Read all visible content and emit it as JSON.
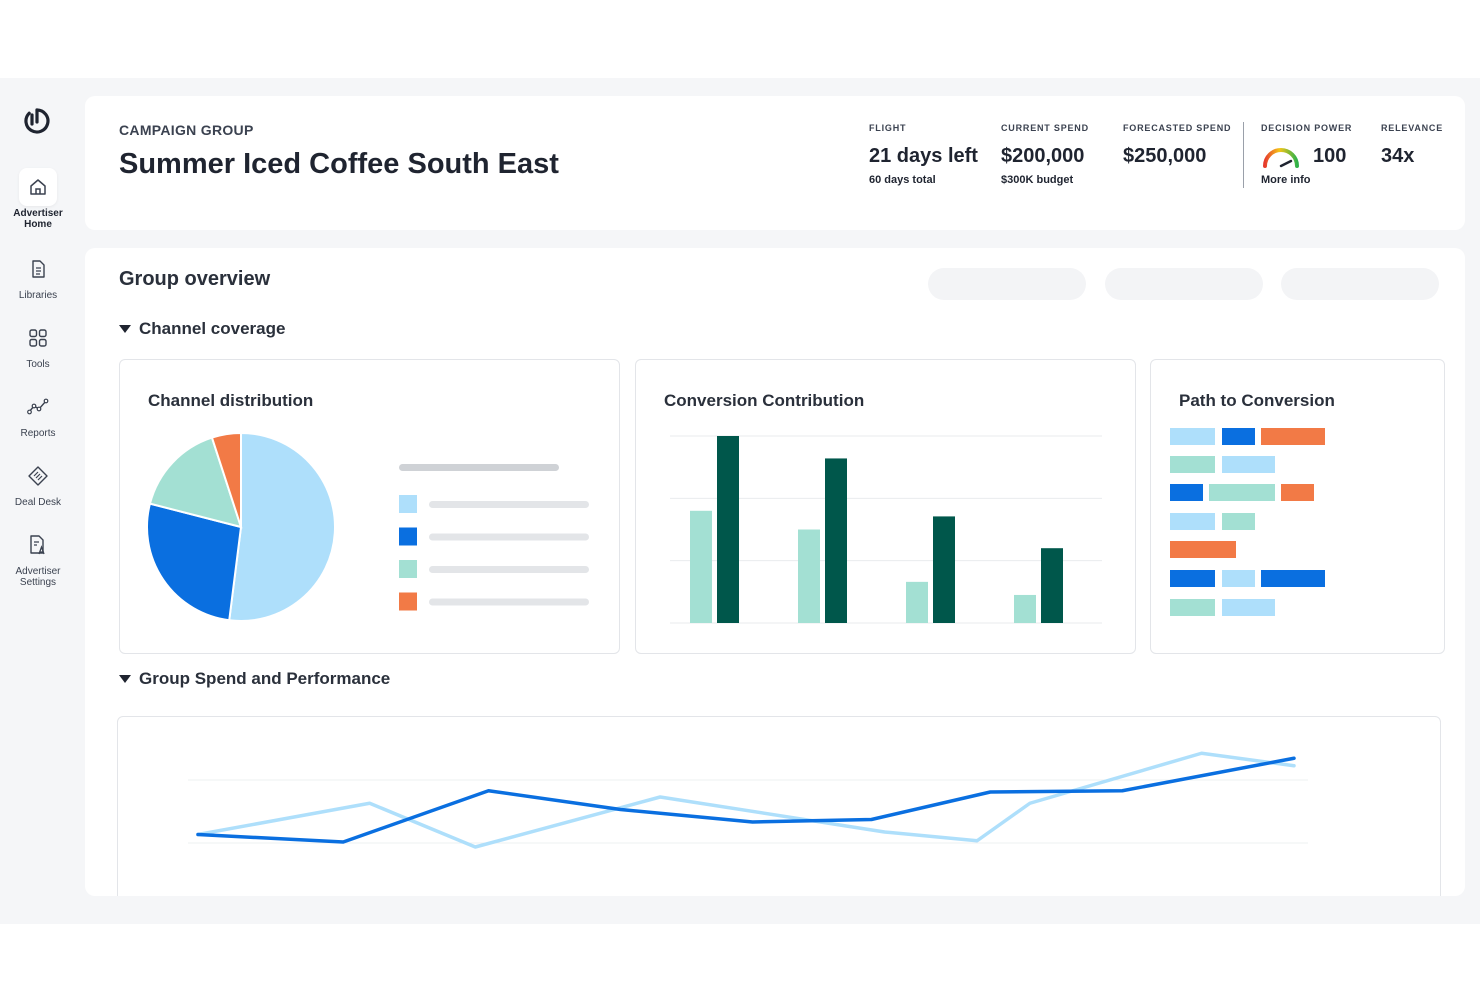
{
  "sidebar": {
    "items": [
      {
        "label": "Advertiser\nHome",
        "icon": "home-icon"
      },
      {
        "label": "Libraries",
        "icon": "document-icon"
      },
      {
        "label": "Tools",
        "icon": "grid-icon"
      },
      {
        "label": "Reports",
        "icon": "line-chart-icon"
      },
      {
        "label": "Deal Desk",
        "icon": "tag-icon"
      },
      {
        "label": "Advertiser\nSettings",
        "icon": "settings-doc-icon"
      }
    ]
  },
  "header": {
    "eyebrow": "CAMPAIGN GROUP",
    "title": "Summer Iced Coffee South East",
    "metrics": {
      "flight": {
        "label": "FLIGHT",
        "value": "21 days left",
        "sub": "60 days total"
      },
      "current_spend": {
        "label": "CURRENT SPEND",
        "value": "$200,000",
        "sub": "$300K budget"
      },
      "forecasted_spend": {
        "label": "FORECASTED SPEND",
        "value": "$250,000"
      },
      "decision_power": {
        "label": "DECISION POWER",
        "value": "100",
        "sub": "More info"
      },
      "relevance": {
        "label": "RELEVANCE",
        "value": "34x"
      }
    }
  },
  "overview": {
    "title": "Group overview",
    "channel_coverage": "Channel coverage",
    "spend_performance": "Group Spend and Performance",
    "panels": {
      "distribution": "Channel distribution",
      "contribution": "Conversion Contribution",
      "path": "Path to Conversion"
    }
  },
  "colors": {
    "light_blue": "#aedffb",
    "blue": "#0a6fe0",
    "mint": "#a3e0d3",
    "orange": "#f27a46",
    "dark_green": "#00574b"
  },
  "chart_data": [
    {
      "type": "pie",
      "title": "Channel distribution",
      "categories": [
        "",
        "",
        "",
        ""
      ],
      "values": [
        52,
        27,
        16,
        5
      ],
      "colors": [
        "#aedffb",
        "#0a6fe0",
        "#a3e0d3",
        "#f27a46"
      ],
      "legend": "right"
    },
    {
      "type": "bar",
      "title": "Conversion Contribution",
      "categories": [
        "",
        "",
        "",
        ""
      ],
      "series": [
        {
          "values": [
            60,
            50,
            22,
            15
          ],
          "color": "#a3e0d3"
        },
        {
          "values": [
            100,
            88,
            57,
            40
          ],
          "color": "#00574b"
        }
      ],
      "ylim": [
        0,
        100
      ],
      "grid": true
    },
    {
      "type": "line",
      "x": [
        0,
        1,
        2,
        3,
        4,
        5,
        6,
        7,
        8
      ],
      "series": [
        {
          "values": [
            30,
            55,
            20,
            60,
            32,
            25,
            55,
            95,
            85
          ],
          "color": "#aedffb",
          "x": [
            0,
            1.3,
            2.1,
            3.5,
            5.2,
            5.9,
            6.3,
            7.6,
            8.3
          ]
        },
        {
          "values": [
            30,
            24,
            65,
            50,
            40,
            42,
            64,
            65,
            91
          ],
          "color": "#0a6fe0",
          "x": [
            0,
            1.1,
            2.2,
            3.2,
            4.2,
            5.1,
            6.0,
            7.0,
            8.3
          ]
        }
      ],
      "grid": true
    }
  ]
}
